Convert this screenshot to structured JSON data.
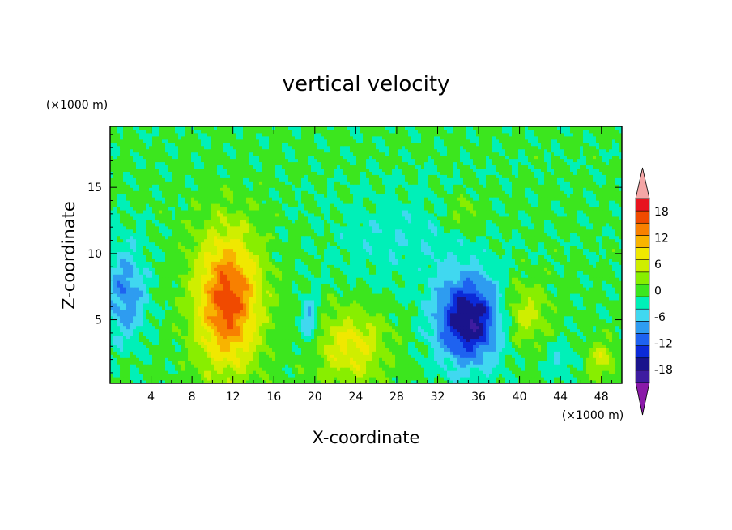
{
  "chart_data": {
    "type": "heatmap",
    "title": "vertical velocity",
    "xlabel": "X-coordinate",
    "ylabel": "Z-coordinate",
    "x_unit": "(×1000 m)",
    "y_unit": "(×1000 m)",
    "xlim": [
      0,
      50
    ],
    "ylim": [
      0.2,
      19.6
    ],
    "x_ticks": [
      4,
      8,
      12,
      16,
      20,
      24,
      28,
      32,
      36,
      40,
      44,
      48
    ],
    "y_ticks": [
      5,
      10,
      15
    ],
    "colorbar": {
      "levels": [
        -21,
        -18,
        -15,
        -12,
        -9,
        -6,
        -3,
        0,
        3,
        6,
        9,
        12,
        15,
        18,
        21
      ],
      "tick_labels": [
        "18",
        "12",
        "6",
        "0",
        "-6",
        "-12",
        "-18"
      ],
      "tick_values": [
        18,
        12,
        6,
        0,
        -6,
        -12,
        -18
      ],
      "colors": [
        "#8a1aa8",
        "#3e1ca0",
        "#1a148c",
        "#0c2ad8",
        "#1e62f0",
        "#2e9cf0",
        "#40d8f0",
        "#00f0b8",
        "#3ce61e",
        "#88ee00",
        "#cfee00",
        "#f0e800",
        "#f8b400",
        "#f88000",
        "#f04a00",
        "#e8141e",
        "#f4a6a6"
      ]
    },
    "features": [
      {
        "label": "updraft",
        "x": 11.5,
        "z": 6.5,
        "sx": 2.2,
        "sz": 3.6,
        "w": 19
      },
      {
        "label": "updraft",
        "x": 23.5,
        "z": 3.0,
        "sx": 2.4,
        "sz": 2.0,
        "w": 9
      },
      {
        "label": "updraft",
        "x": 40.5,
        "z": 5.5,
        "sx": 1.6,
        "sz": 1.6,
        "w": 7
      },
      {
        "label": "updraft",
        "x": 48.0,
        "z": 2.0,
        "sx": 1.0,
        "sz": 1.0,
        "w": 7
      },
      {
        "label": "updraft",
        "x": 34.5,
        "z": 13.0,
        "sx": 1.2,
        "sz": 1.0,
        "w": 4
      },
      {
        "label": "downdraft",
        "x": 35.0,
        "z": 5.0,
        "sx": 2.2,
        "sz": 2.3,
        "w": -19
      },
      {
        "label": "downdraft",
        "x": 1.5,
        "z": 7.0,
        "sx": 1.4,
        "sz": 2.5,
        "w": -9
      },
      {
        "label": "downdraft",
        "x": 19.5,
        "z": 5.0,
        "sx": 0.6,
        "sz": 1.2,
        "w": -8
      },
      {
        "label": "downdraft",
        "x": 44.0,
        "z": 2.0,
        "sx": 1.0,
        "sz": 1.0,
        "w": -4
      },
      {
        "label": "downdraft",
        "x": 28.5,
        "z": 11.0,
        "sx": 5.0,
        "sz": 2.5,
        "w": -3
      }
    ]
  }
}
